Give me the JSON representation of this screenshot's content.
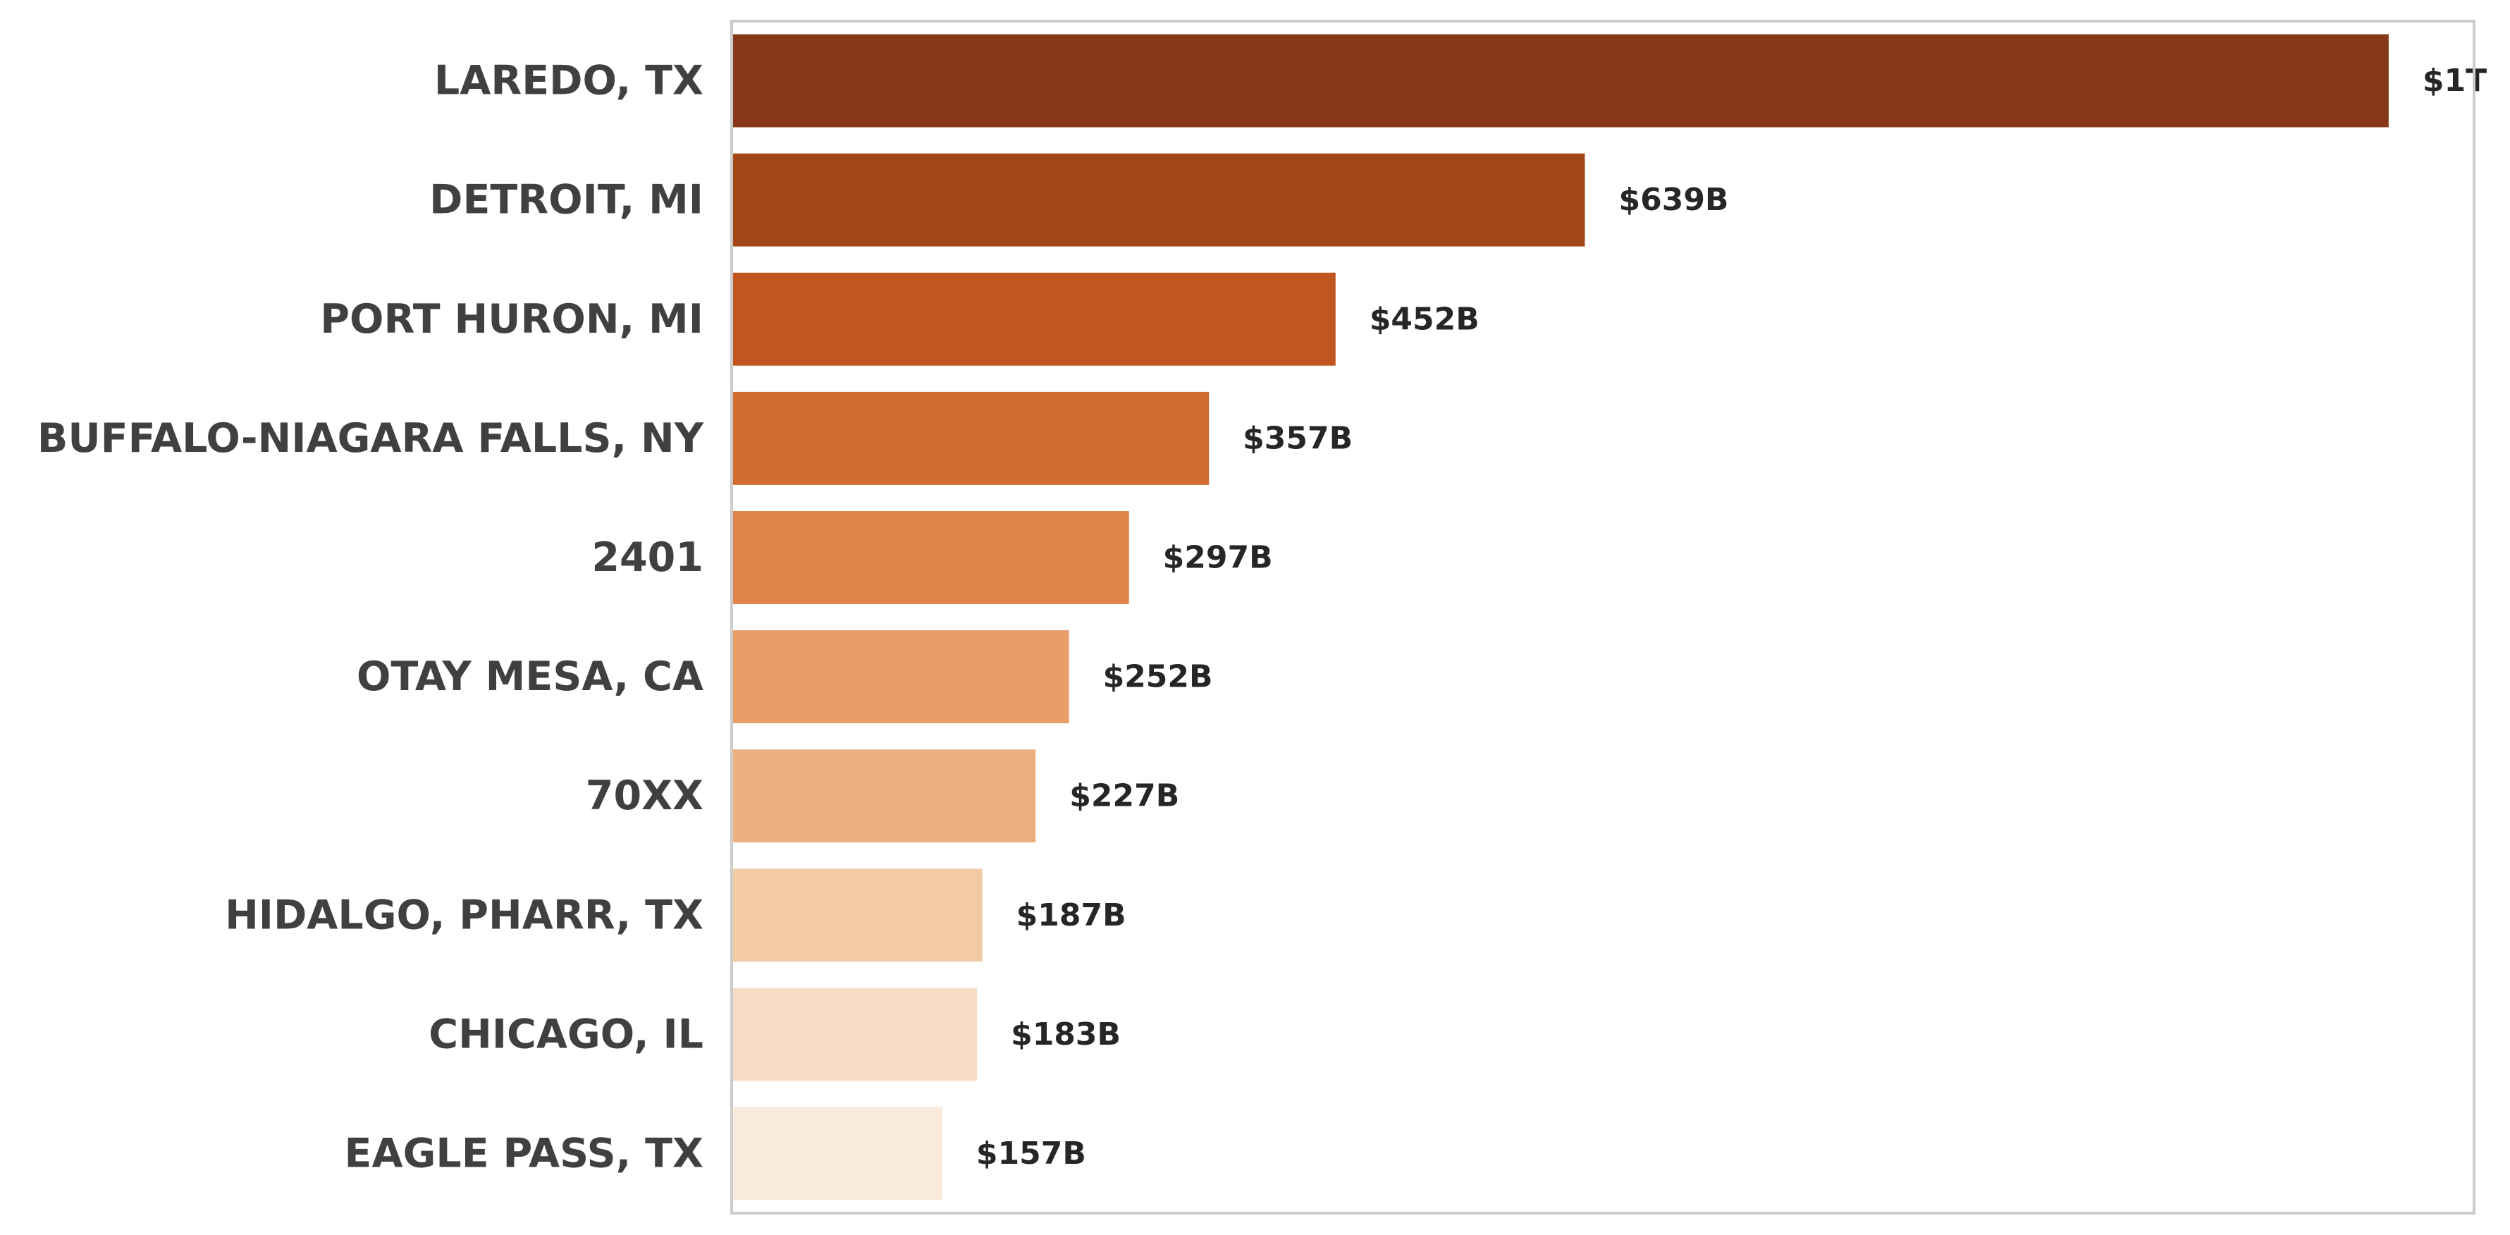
{
  "chart_data": {
    "type": "bar",
    "orientation": "horizontal",
    "title": "",
    "xlabel": "",
    "ylabel": "",
    "categories": [
      "LAREDO, TX",
      "DETROIT, MI",
      "PORT HURON, MI",
      "BUFFALO-NIAGARA FALLS, NY",
      "2401",
      "OTAY MESA, CA",
      "70XX",
      "HIDALGO, PHARR, TX",
      "CHICAGO, IL",
      "EAGLE PASS, TX"
    ],
    "values": [
      1242,
      639,
      452,
      357,
      297,
      252,
      227,
      187,
      183,
      157
    ],
    "value_labels": [
      "$1T",
      "$639B",
      "$452B",
      "$357B",
      "$297B",
      "$252B",
      "$227B",
      "$187B",
      "$183B",
      "$157B"
    ],
    "unit": "billions USD",
    "xlim": [
      0,
      1305
    ],
    "grid": false,
    "legend": "none",
    "colors": [
      "#863818",
      "#a34718",
      "#c25620",
      "#d26b2e",
      "#e0844b",
      "#e89d68",
      "#ebb182",
      "#f2caa5",
      "#f6dcc3",
      "#f9eadc"
    ],
    "label_color": "#404040",
    "value_label_color": "#262626",
    "frame_color": "#cccccc"
  }
}
